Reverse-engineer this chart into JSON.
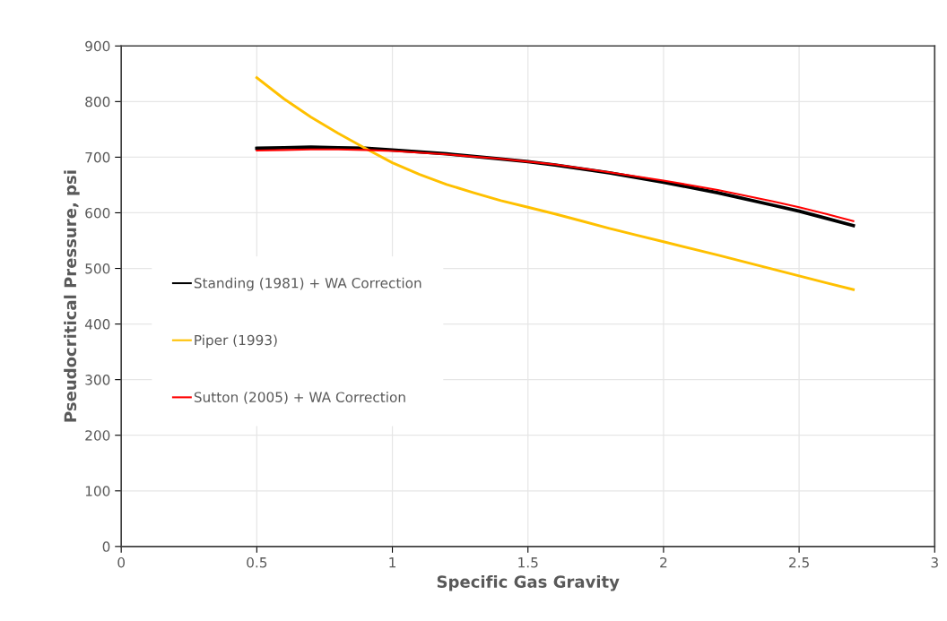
{
  "chart_data": {
    "type": "line",
    "xlabel": "Specific Gas Gravity",
    "ylabel": "Pseudocritical Pressure, psi",
    "xlim": [
      0,
      3
    ],
    "xticks": [
      0,
      0.5,
      1,
      1.5,
      2,
      2.5,
      3
    ],
    "ylim": [
      0,
      900
    ],
    "yticks": [
      0,
      100,
      200,
      300,
      400,
      500,
      600,
      700,
      800,
      900
    ],
    "grid": true,
    "legend": "left",
    "marker": "none",
    "line_style": "solid",
    "series": [
      {
        "name": "Standing (1981) + WA Correction",
        "color": "#000000",
        "x": [
          0.5,
          0.6,
          0.7,
          0.8,
          0.9,
          1.0,
          1.2,
          1.4,
          1.5,
          1.6,
          1.8,
          2.0,
          2.2,
          2.4,
          2.5,
          2.6,
          2.7
        ],
        "values": [
          716,
          717,
          718,
          717,
          716,
          713,
          706,
          697,
          692,
          686,
          672,
          655,
          636,
          614,
          603,
          590,
          577
        ]
      },
      {
        "name": "Piper (1993)",
        "color": "#ffc000",
        "x": [
          0.5,
          0.6,
          0.7,
          0.8,
          0.9,
          1.0,
          1.1,
          1.2,
          1.3,
          1.4,
          1.5,
          1.6,
          1.7,
          1.8,
          1.9,
          2.0,
          2.2,
          2.4,
          2.6,
          2.7
        ],
        "values": [
          843,
          805,
          772,
          743,
          716,
          690,
          669,
          651,
          636,
          622,
          610,
          598,
          585,
          572,
          560,
          548,
          524,
          499,
          474,
          462
        ]
      },
      {
        "name": "Sutton (2005) + WA Correction",
        "color": "#ff0000",
        "x": [
          0.5,
          0.6,
          0.7,
          0.8,
          0.9,
          1.0,
          1.2,
          1.4,
          1.5,
          1.6,
          1.8,
          2.0,
          2.2,
          2.4,
          2.5,
          2.6,
          2.7
        ],
        "values": [
          712,
          713,
          714,
          714,
          713,
          711,
          705,
          697,
          692,
          687,
          673,
          658,
          641,
          621,
          610,
          598,
          585
        ]
      }
    ]
  }
}
